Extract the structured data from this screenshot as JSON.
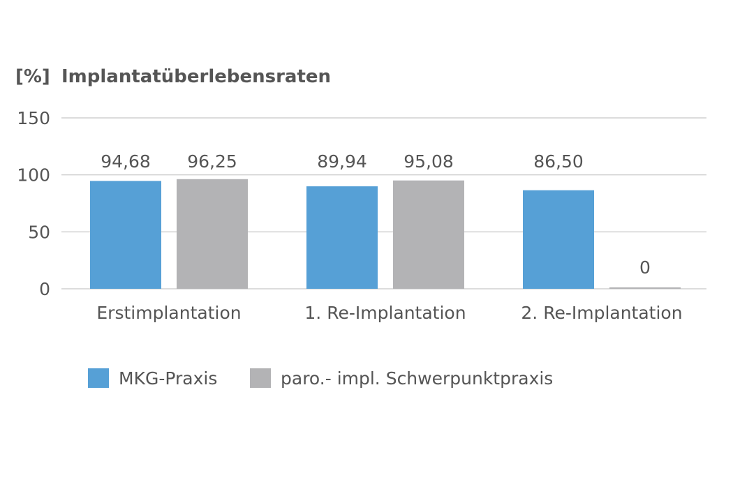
{
  "chart_data": {
    "type": "bar",
    "title_unit": "[%]",
    "title": "Implantatüberlebensraten",
    "categories": [
      "Erstimplantation",
      "1. Re-Implantation",
      "2. Re-Implantation"
    ],
    "series": [
      {
        "name": "MKG-Praxis",
        "color": "#56a0d6",
        "values": [
          94.68,
          89.94,
          86.5
        ],
        "labels": [
          "94,68",
          "89,94",
          "86,50"
        ]
      },
      {
        "name": "paro.- impl. Schwerpunktpraxis",
        "color": "#b3b3b5",
        "values": [
          96.25,
          95.08,
          0
        ],
        "labels": [
          "96,25",
          "95,08",
          "0"
        ]
      }
    ],
    "ylim": [
      0,
      150
    ],
    "yticks": [
      {
        "value": 0,
        "label": "0"
      },
      {
        "value": 50,
        "label": "50"
      },
      {
        "value": 100,
        "label": "100"
      },
      {
        "value": 150,
        "label": "150"
      }
    ],
    "grid": true,
    "legend_position": "bottom-left"
  }
}
